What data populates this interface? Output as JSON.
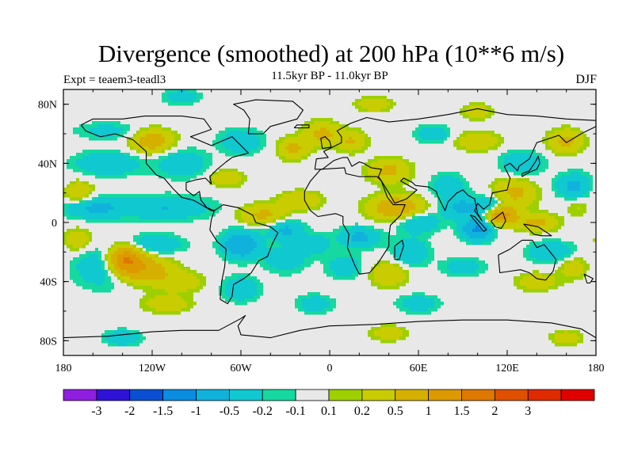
{
  "chart_data": {
    "type": "heatmap",
    "title": "Divergence (smoothed) at 200 hPa (10**6 m/s)",
    "subtitle": "11.5kyr BP - 11.0kyr BP",
    "left_label": "Expt = teaem3-teadl3",
    "right_label": "DJF",
    "x_axis": {
      "range": [
        -180,
        180
      ],
      "tick_labels": [
        "180",
        "120W",
        "60W",
        "0",
        "60E",
        "120E",
        "180"
      ]
    },
    "y_axis": {
      "range": [
        -90,
        90
      ],
      "tick_labels": [
        "80N",
        "40N",
        "0",
        "40S",
        "80S"
      ]
    },
    "colorbar": {
      "colors": [
        "#8f1ee0",
        "#2f12d8",
        "#0a4fd2",
        "#0a8ce0",
        "#10b2dc",
        "#10c8d0",
        "#15d9a0",
        "#e8e8e8",
        "#9ed000",
        "#c8cc00",
        "#d6b000",
        "#dc9a00",
        "#de7800",
        "#e05000",
        "#e02a00",
        "#e00000"
      ],
      "labels": [
        "-3",
        "-2",
        "-1.5",
        "-1",
        "-0.5",
        "-0.2",
        "-0.1",
        "0.1",
        "0.2",
        "0.5",
        "1",
        "1.5",
        "2",
        "3"
      ]
    }
  }
}
